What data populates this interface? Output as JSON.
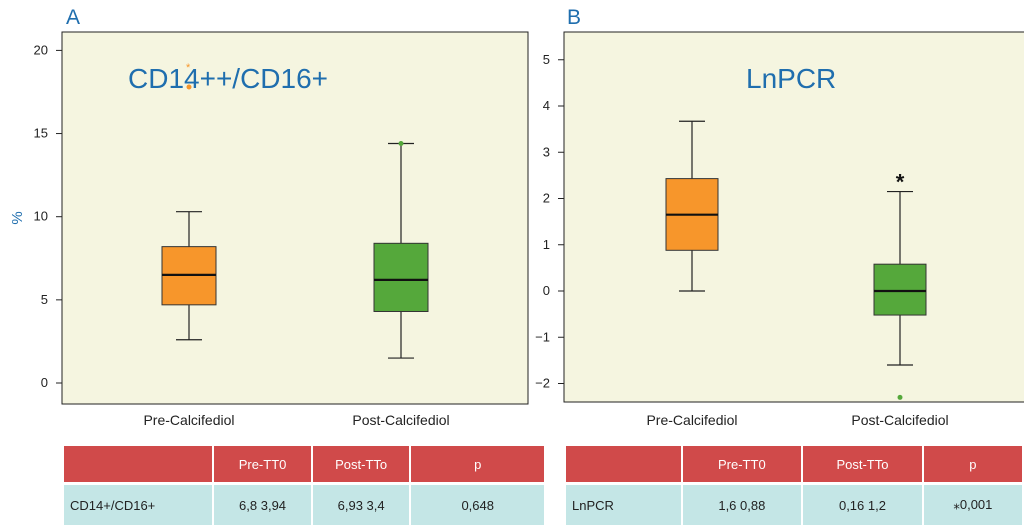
{
  "chart_data": [
    {
      "type": "box",
      "panel": "A",
      "title": "CD14++/CD16+",
      "ylabel": "%",
      "ylim": [
        -1,
        21
      ],
      "yticks": [
        0,
        5,
        10,
        15,
        20
      ],
      "categories": [
        "Pre-Calcifediol",
        "Post-Calcifediol"
      ],
      "boxes": [
        {
          "name": "Pre-Calcifediol",
          "color": "#f7962b",
          "min": 2.6,
          "q1": 4.7,
          "median": 6.5,
          "q3": 8.2,
          "max": 10.3,
          "outliers": [
            17.8
          ]
        },
        {
          "name": "Post-Calcifediol",
          "color": "#55a83b",
          "min": 1.5,
          "q1": 4.3,
          "median": 6.2,
          "q3": 8.4,
          "max": 14.4,
          "outliers": [
            14.4
          ]
        }
      ],
      "star_label": "",
      "outlier_star_label": "*",
      "table": {
        "headers": [
          "",
          "Pre-TT0",
          "Post-TTo",
          "p"
        ],
        "row": [
          "CD14+/CD16+",
          "6,8  3,94",
          "6,93  3,4",
          "0,648"
        ]
      }
    },
    {
      "type": "box",
      "panel": "B",
      "title": "LnPCR",
      "ylabel": "",
      "ylim": [
        -2.4,
        5.3
      ],
      "yticks": [
        -2,
        -1,
        0,
        1,
        2,
        3,
        4,
        5
      ],
      "categories": [
        "Pre-Calcifediol",
        "Post-Calcifediol"
      ],
      "boxes": [
        {
          "name": "Pre-Calcifediol",
          "color": "#f7962b",
          "min": 0.0,
          "q1": 0.88,
          "median": 1.65,
          "q3": 2.43,
          "max": 3.67,
          "outliers": []
        },
        {
          "name": "Post-Calcifediol",
          "color": "#55a83b",
          "min": -1.6,
          "q1": -0.52,
          "median": 0.0,
          "q3": 0.58,
          "max": 2.15,
          "outliers": [
            -2.3
          ]
        }
      ],
      "star_label": "*",
      "outlier_star_label": "",
      "table": {
        "headers": [
          "",
          "Pre-TT0",
          "Post-TTo",
          "p"
        ],
        "row": [
          "LnPCR",
          "1,6  0,88",
          "0,16  1,2",
          "⁎0,001"
        ]
      }
    }
  ]
}
